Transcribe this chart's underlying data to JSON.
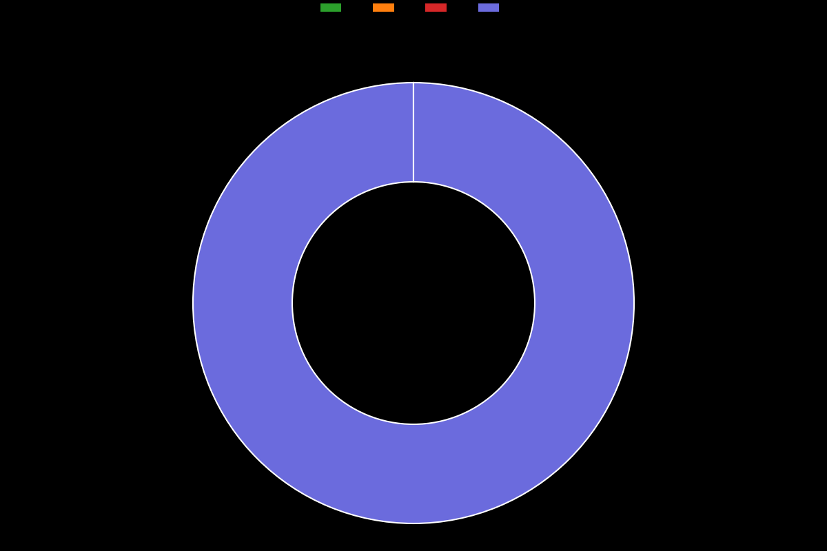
{
  "slices": [
    0.001,
    0.001,
    0.001,
    99.997
  ],
  "colors": [
    "#2ca02c",
    "#ff7f0e",
    "#d62728",
    "#6b6bdd"
  ],
  "background_color": "#000000",
  "wedge_edge_color": "#ffffff",
  "wedge_linewidth": 1.5,
  "donut_width": 0.45,
  "legend_colors": [
    "#2ca02c",
    "#ff7f0e",
    "#d62728",
    "#6b6bdd"
  ],
  "legend_labels": [
    "",
    "",
    "",
    ""
  ],
  "figsize": [
    12.0,
    8.0
  ],
  "dpi": 100
}
